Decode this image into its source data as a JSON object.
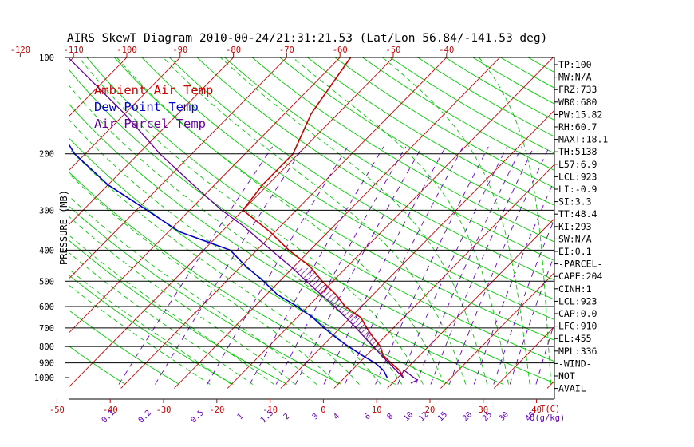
{
  "title": "AIRS SkewT Diagram 2010-00-24/21:31:21.53 (Lat/Lon 56.84/-141.53 deg)",
  "colors": {
    "ambient": "#cc0000",
    "dewpoint": "#0000cc",
    "parcel": "#660099",
    "isotherm": "#cc0000",
    "dry_adiabat": "#00cc00",
    "moist_adiabat": "#00cc00",
    "mixing_ratio": "#6600cc",
    "isobar": "#000000"
  },
  "chart_data": {
    "type": "line",
    "title": "AIRS SkewT Diagram 2010-00-24/21:31:21.53 (Lat/Lon 56.84/-141.53 deg)",
    "ylabel": "PRESSURE (MB)",
    "xlabel": "T(C)",
    "mixing_ratio_label": "Q(g/kg)",
    "y_scale": "log",
    "ylim": [
      1000,
      100
    ],
    "pressure_ticks": [
      "100",
      "200",
      "300",
      "400",
      "500",
      "600",
      "700",
      "800",
      "900",
      "1000"
    ],
    "bottom_temp_ticks": [
      "-50",
      "-40",
      "-30",
      "-20",
      "-10",
      "0",
      "10",
      "20",
      "30",
      "40"
    ],
    "top_temp_ticks": [
      "-120",
      "-110",
      "-100",
      "-90",
      "-80",
      "-70",
      "-60",
      "-50",
      "-40"
    ],
    "mixing_ratio_ticks": [
      "0.1",
      "0.2",
      "0.5",
      "1",
      "1.5",
      "2",
      "3",
      "4",
      "6",
      "8",
      "10",
      "12",
      "15",
      "20",
      "25",
      "30",
      "40"
    ],
    "legend": [
      "Ambient Air Temp",
      "Dew Point Temp",
      "Air Parcel Temp"
    ],
    "legend_position": "top-left",
    "series": [
      {
        "name": "Ambient Air Temp",
        "points": [
          {
            "p": 1000,
            "t": 11
          },
          {
            "p": 950,
            "t": 9
          },
          {
            "p": 900,
            "t": 6
          },
          {
            "p": 850,
            "t": 3
          },
          {
            "p": 800,
            "t": 1
          },
          {
            "p": 750,
            "t": -2
          },
          {
            "p": 700,
            "t": -5
          },
          {
            "p": 650,
            "t": -8
          },
          {
            "p": 600,
            "t": -13
          },
          {
            "p": 550,
            "t": -17
          },
          {
            "p": 500,
            "t": -22
          },
          {
            "p": 450,
            "t": -27
          },
          {
            "p": 400,
            "t": -34
          },
          {
            "p": 350,
            "t": -41
          },
          {
            "p": 300,
            "t": -50
          },
          {
            "p": 250,
            "t": -51
          },
          {
            "p": 200,
            "t": -51
          },
          {
            "p": 150,
            "t": -55
          },
          {
            "p": 100,
            "t": -58
          }
        ]
      },
      {
        "name": "Dew Point Temp",
        "points": [
          {
            "p": 1000,
            "t": 8
          },
          {
            "p": 950,
            "t": 6
          },
          {
            "p": 900,
            "t": 3
          },
          {
            "p": 850,
            "t": -1
          },
          {
            "p": 800,
            "t": -5
          },
          {
            "p": 750,
            "t": -9
          },
          {
            "p": 700,
            "t": -13
          },
          {
            "p": 650,
            "t": -17
          },
          {
            "p": 600,
            "t": -22
          },
          {
            "p": 550,
            "t": -28
          },
          {
            "p": 500,
            "t": -33
          },
          {
            "p": 450,
            "t": -39
          },
          {
            "p": 400,
            "t": -45
          },
          {
            "p": 350,
            "t": -58
          },
          {
            "p": 300,
            "t": -68
          },
          {
            "p": 250,
            "t": -80
          },
          {
            "p": 200,
            "t": -92
          },
          {
            "p": 150,
            "t": -104
          },
          {
            "p": 100,
            "t": -112
          }
        ]
      },
      {
        "name": "Air Parcel Temp",
        "points": [
          {
            "p": 1000,
            "t": 11
          },
          {
            "p": 923,
            "t": 6.9
          },
          {
            "p": 900,
            "t": 5.6
          },
          {
            "p": 850,
            "t": 2.7
          },
          {
            "p": 800,
            "t": -0.4
          },
          {
            "p": 750,
            "t": -3.6
          },
          {
            "p": 700,
            "t": -7
          },
          {
            "p": 650,
            "t": -10.8
          },
          {
            "p": 600,
            "t": -15
          },
          {
            "p": 550,
            "t": -19.8
          },
          {
            "p": 500,
            "t": -25
          },
          {
            "p": 455,
            "t": -30
          },
          {
            "p": 400,
            "t": -37.3
          },
          {
            "p": 336,
            "t": -47
          },
          {
            "p": 300,
            "t": -54
          },
          {
            "p": 250,
            "t": -64
          },
          {
            "p": 200,
            "t": -76
          },
          {
            "p": 150,
            "t": -90
          },
          {
            "p": 100,
            "t": -111
          }
        ]
      }
    ],
    "cape_shading": {
      "from_p": 910,
      "to_p": 455
    },
    "wind_barb_p": 950
  },
  "indices": [
    "TP:100",
    "MW:N/A",
    "FRZ:733",
    "WB0:680",
    "PW:15.82",
    "RH:60.7",
    "MAXT:18.1",
    "TH:5138",
    "L57:6.9",
    "LCL:923",
    "LI:-0.9",
    "SI:3.3",
    "TT:48.4",
    "KI:293",
    "SW:N/A",
    "EI:0.1",
    "-PARCEL-",
    "CAPE:204",
    "CINH:1",
    "LCL:923",
    "CAP:0.0",
    "LFC:910",
    "EL:455",
    "MPL:336",
    "-WIND-",
    "NOT",
    "AVAIL"
  ]
}
